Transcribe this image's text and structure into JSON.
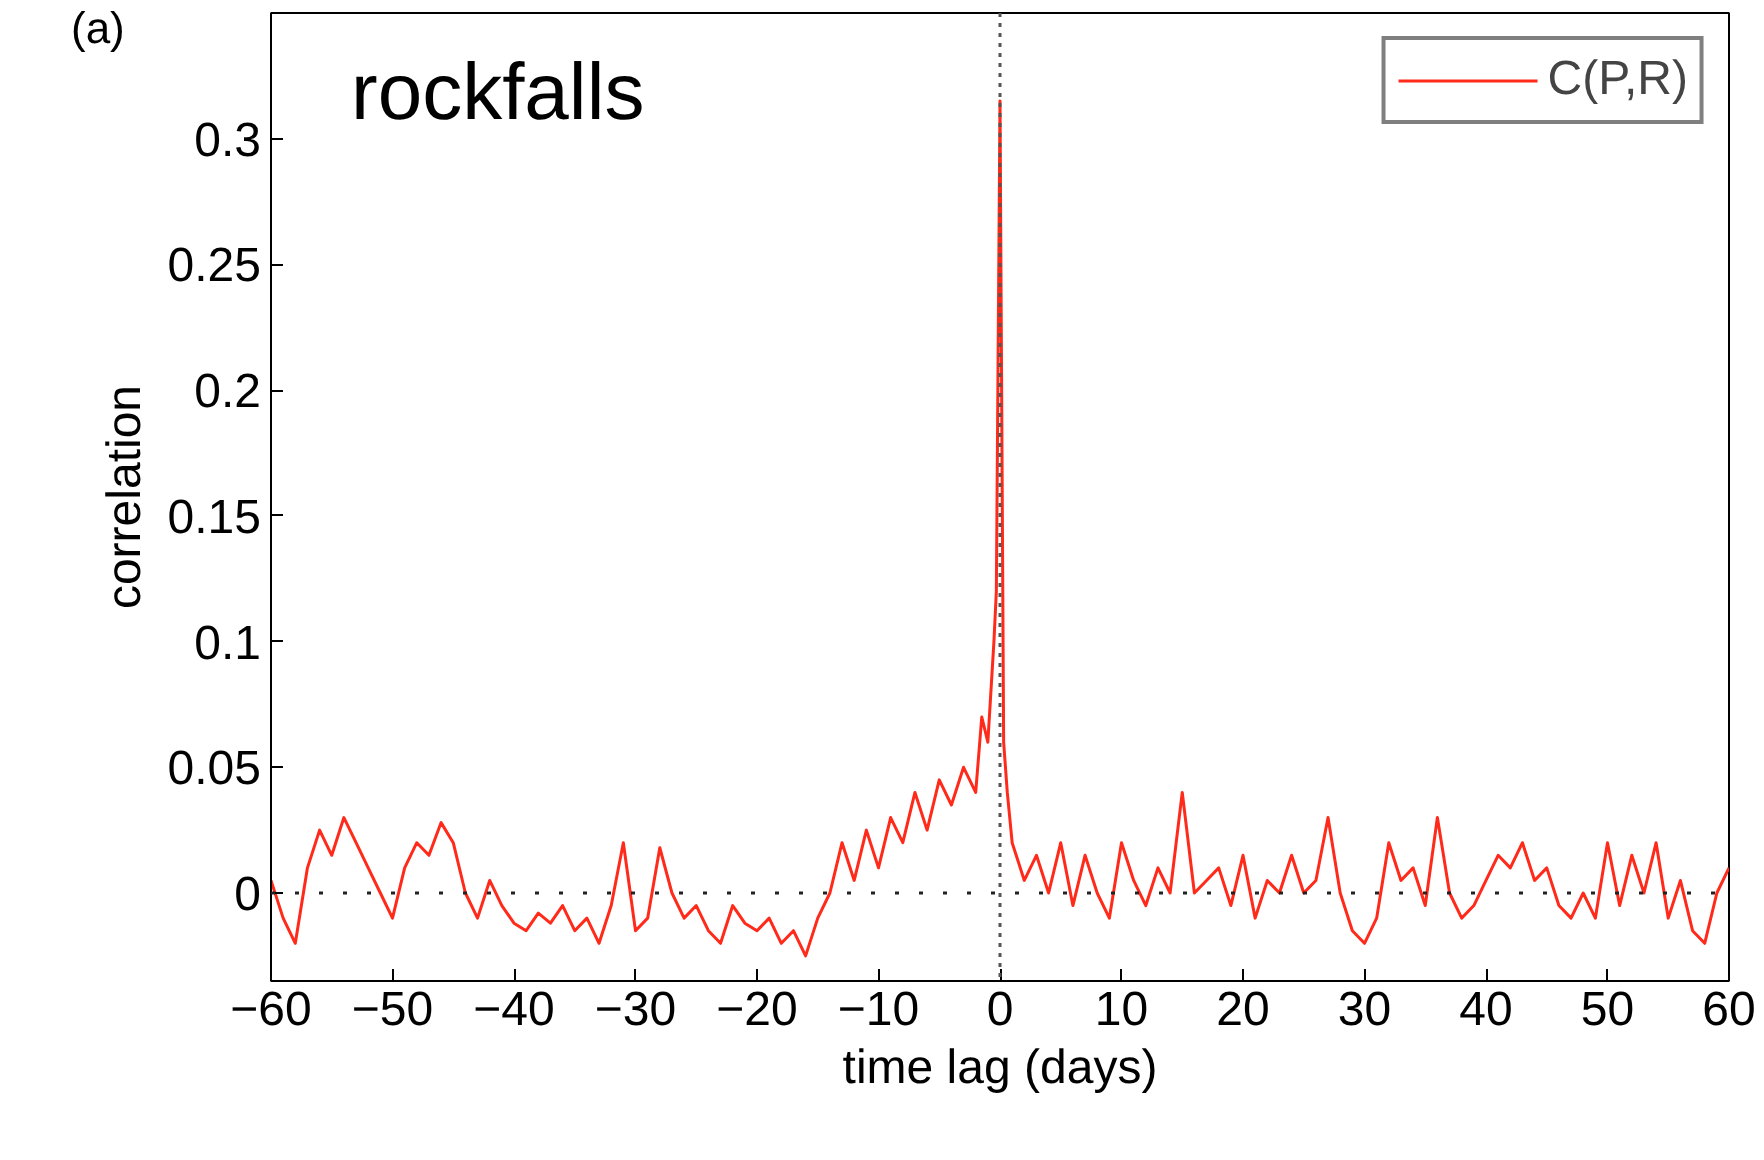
{
  "chart_data": {
    "type": "line",
    "xlabel": "time lag (days)",
    "ylabel": "correlation",
    "annotations": [
      "(a)",
      "rockfalls"
    ],
    "x": [
      -60,
      -59,
      -58,
      -57,
      -56,
      -55,
      -54,
      -53,
      -52,
      -51,
      -50,
      -49,
      -48,
      -47,
      -46,
      -45,
      -44,
      -43,
      -42,
      -41,
      -40,
      -39,
      -38,
      -37,
      -36,
      -35,
      -34,
      -33,
      -32,
      -31,
      -30,
      -29,
      -28,
      -27,
      -26,
      -25,
      -24,
      -23,
      -22,
      -21,
      -20,
      -19,
      -18,
      -17,
      -16,
      -15,
      -14,
      -13,
      -12,
      -11,
      -10,
      -9,
      -8,
      -7,
      -6,
      -5,
      -4,
      -3,
      -2,
      -1.5,
      -1,
      -0.5,
      -0.3,
      0,
      0.3,
      0.6,
      1,
      2,
      3,
      4,
      5,
      6,
      7,
      8,
      9,
      10,
      11,
      12,
      13,
      14,
      15,
      16,
      17,
      18,
      19,
      20,
      21,
      22,
      23,
      24,
      25,
      26,
      27,
      28,
      29,
      30,
      31,
      32,
      33,
      34,
      35,
      36,
      37,
      38,
      39,
      40,
      41,
      42,
      43,
      44,
      45,
      46,
      47,
      48,
      49,
      50,
      51,
      52,
      53,
      54,
      55,
      56,
      57,
      58,
      59,
      60
    ],
    "series": [
      {
        "name": "C(P,R)",
        "color": "#ff2a1a",
        "values": [
          0.005,
          -0.01,
          -0.02,
          0.01,
          0.025,
          0.015,
          0.03,
          0.02,
          0.01,
          0.0,
          -0.01,
          0.01,
          0.02,
          0.015,
          0.028,
          0.02,
          0.0,
          -0.01,
          0.005,
          -0.005,
          -0.012,
          -0.015,
          -0.008,
          -0.012,
          -0.005,
          -0.015,
          -0.01,
          -0.02,
          -0.005,
          0.02,
          -0.015,
          -0.01,
          0.018,
          0.0,
          -0.01,
          -0.005,
          -0.015,
          -0.02,
          -0.005,
          -0.012,
          -0.015,
          -0.01,
          -0.02,
          -0.015,
          -0.025,
          -0.01,
          0.0,
          0.02,
          0.005,
          0.025,
          0.01,
          0.03,
          0.02,
          0.04,
          0.025,
          0.045,
          0.035,
          0.05,
          0.04,
          0.07,
          0.06,
          0.1,
          0.12,
          0.315,
          0.06,
          0.04,
          0.02,
          0.005,
          0.015,
          0.0,
          0.02,
          -0.005,
          0.015,
          0.0,
          -0.01,
          0.02,
          0.005,
          -0.005,
          0.01,
          0.0,
          0.04,
          0.0,
          0.005,
          0.01,
          -0.005,
          0.015,
          -0.01,
          0.005,
          0.0,
          0.015,
          0.0,
          0.005,
          0.03,
          0.0,
          -0.015,
          -0.02,
          -0.01,
          0.02,
          0.005,
          0.01,
          -0.005,
          0.03,
          0.0,
          -0.01,
          -0.005,
          0.005,
          0.015,
          0.01,
          0.02,
          0.005,
          0.01,
          -0.005,
          -0.01,
          0.0,
          -0.01,
          0.02,
          -0.005,
          0.015,
          0.0,
          0.02,
          -0.01,
          0.005,
          -0.015,
          -0.02,
          0.0,
          0.01
        ]
      }
    ],
    "xlim": [
      -60,
      60
    ],
    "xticks": [
      -60,
      -50,
      -40,
      -30,
      -20,
      -10,
      0,
      10,
      20,
      30,
      40,
      50,
      60
    ],
    "ylim": [
      -0.035,
      0.35
    ],
    "yticks": [
      0,
      0.05,
      0.1,
      0.15,
      0.2,
      0.25,
      0.3
    ],
    "ref_lines": [
      {
        "axis": "x",
        "value": 0,
        "color": "#555555",
        "line_style": "dotted"
      },
      {
        "axis": "y",
        "value": 0,
        "color": "#222222",
        "line_style": "dotted"
      }
    ],
    "legend": "top right",
    "grid": false,
    "line_style": "solid",
    "marker": "none"
  }
}
